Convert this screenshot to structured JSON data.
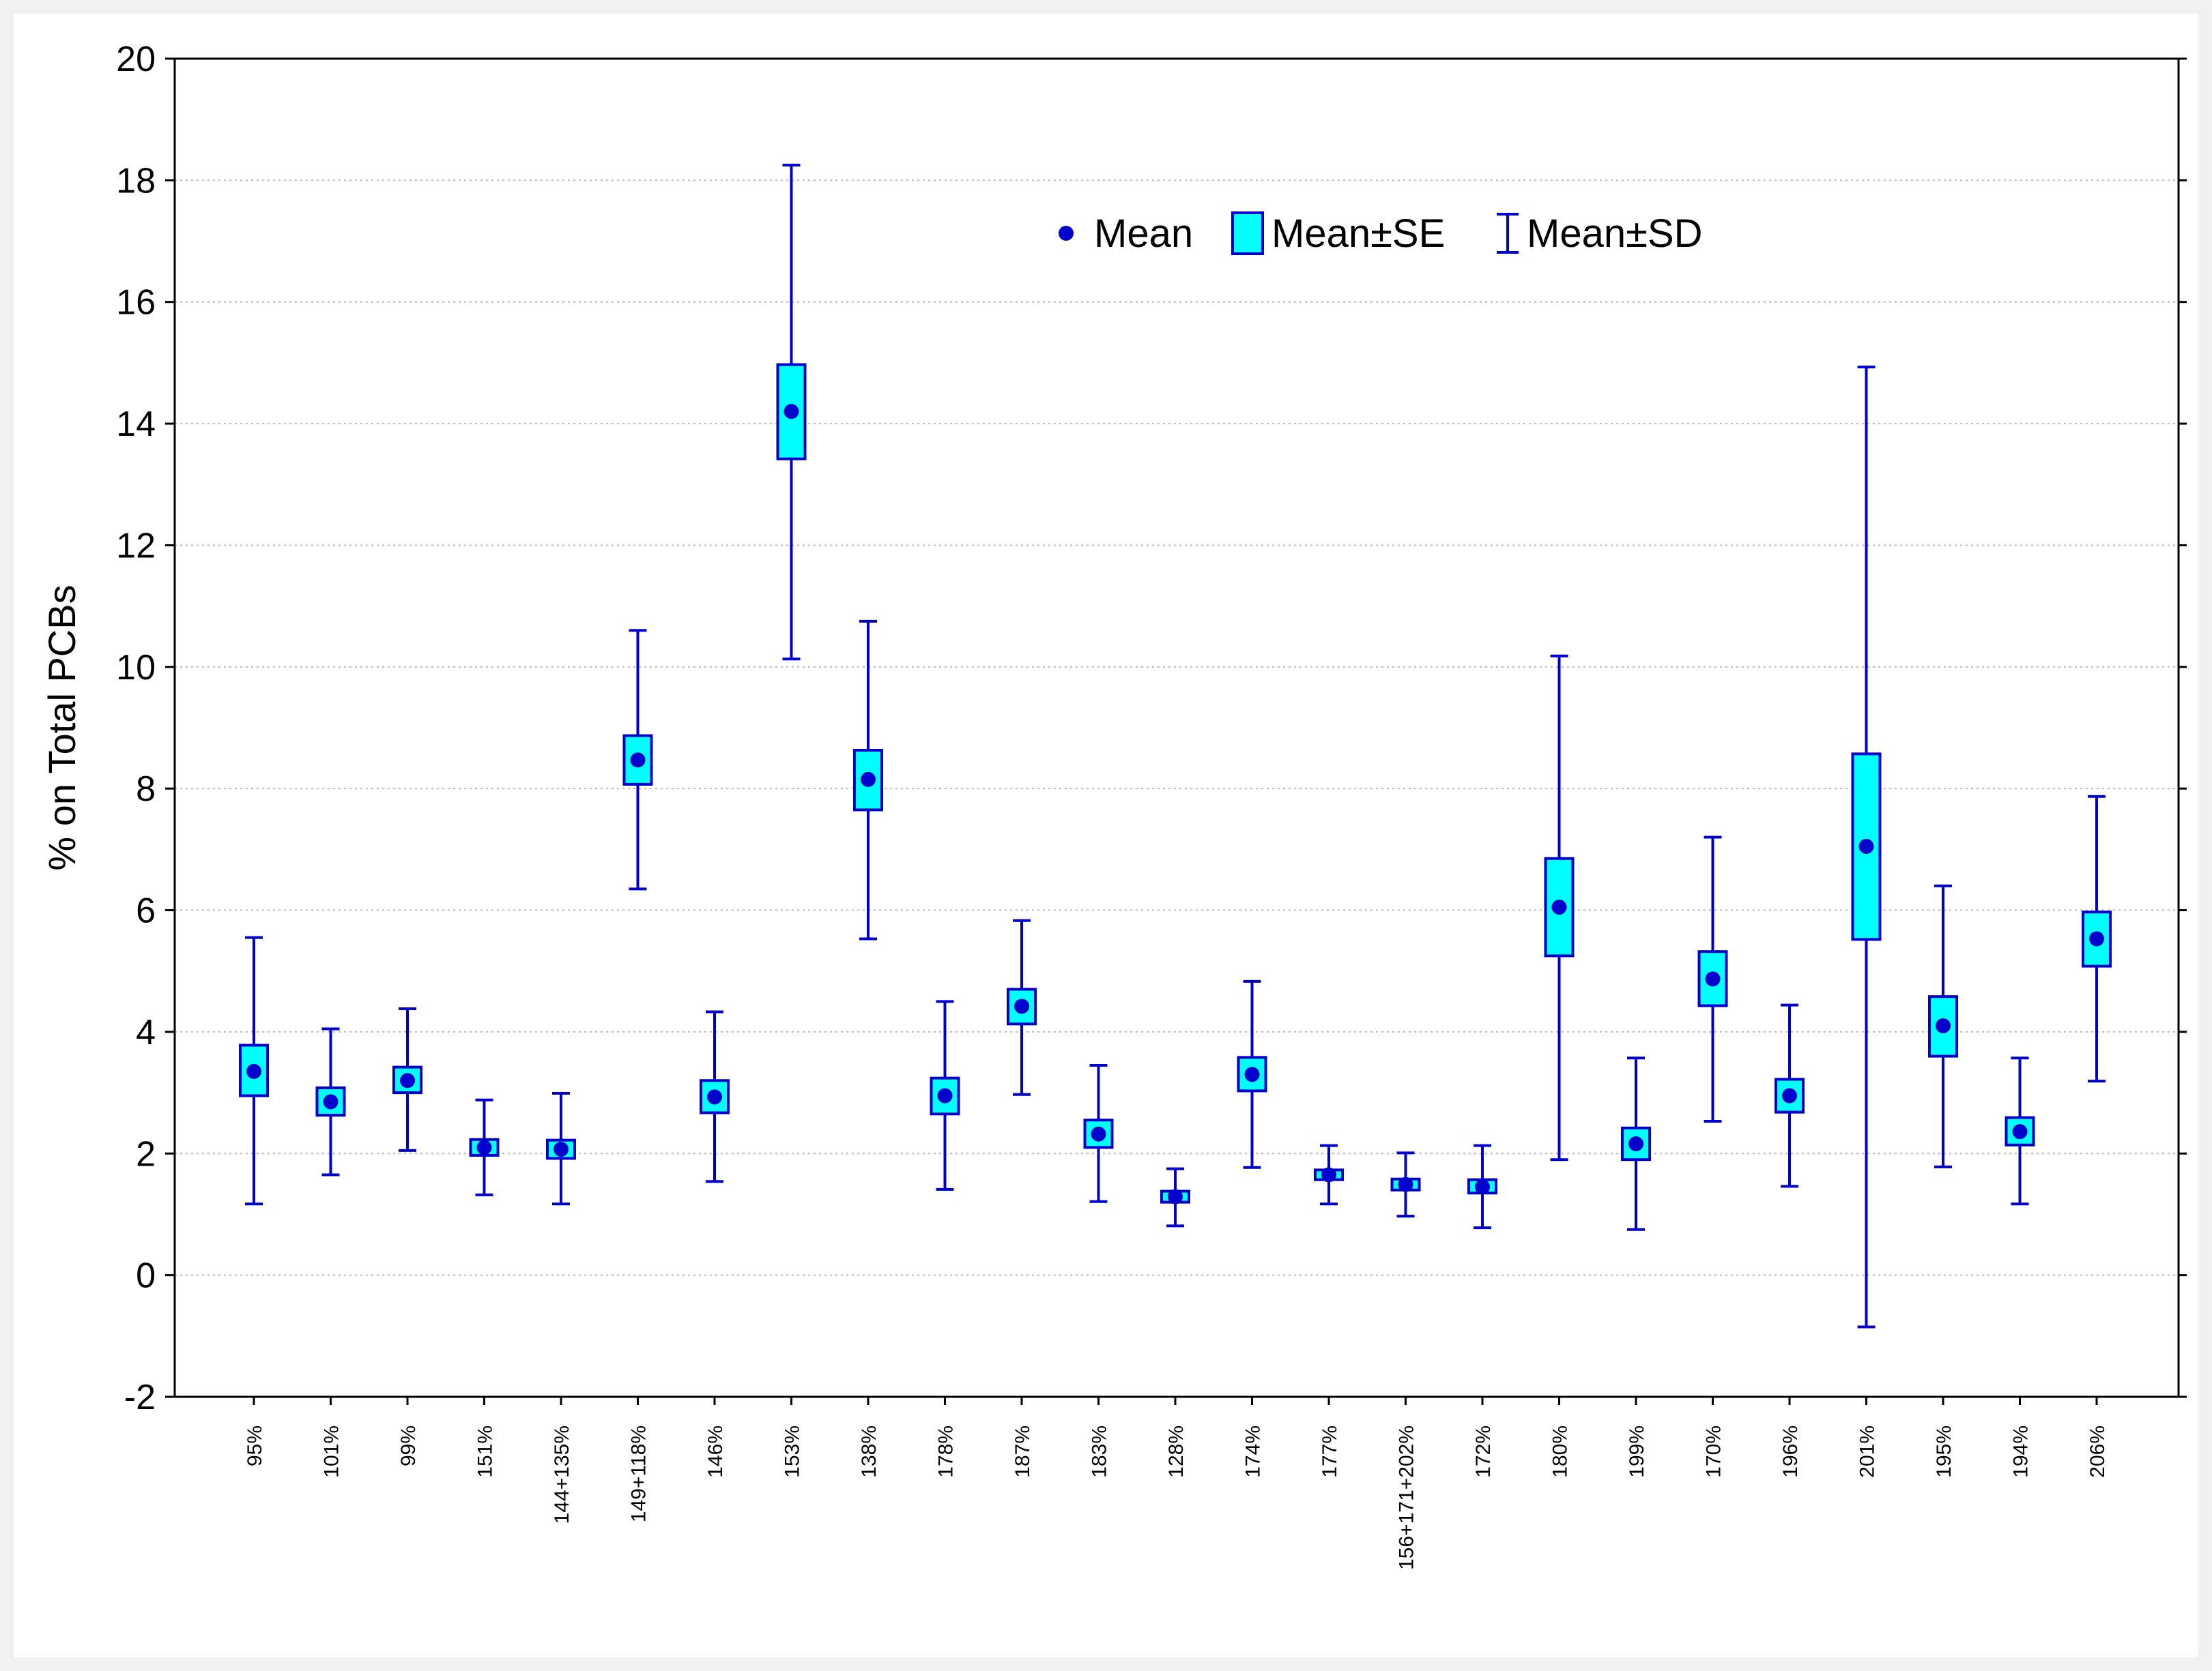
{
  "chart_data": {
    "type": "box",
    "title": "",
    "xlabel": "",
    "ylabel": "% on Total PCBs",
    "ylim": [
      -2,
      20
    ],
    "yticks": [
      "20",
      "18",
      "16",
      "14",
      "12",
      "10",
      "8",
      "6",
      "4",
      "2",
      "0",
      "-2"
    ],
    "grid": "horizontal dotted",
    "legend_position": "top-right",
    "legend": {
      "mean": "Mean",
      "se": "Mean±SE",
      "sd": "Mean±SD"
    },
    "colors": {
      "mark": "#0000cc",
      "box_fill": "#00ffff"
    },
    "categories": [
      "95%",
      "101%",
      "99%",
      "151%",
      "144+135%",
      "149+118%",
      "146%",
      "153%",
      "138%",
      "178%",
      "187%",
      "183%",
      "128%",
      "174%",
      "177%",
      "156+171+202%",
      "172%",
      "180%",
      "199%",
      "170%",
      "196%",
      "201%",
      "195%",
      "194%",
      "206%"
    ],
    "mean": [
      3.35,
      2.85,
      3.2,
      2.1,
      2.07,
      8.47,
      2.93,
      14.2,
      8.15,
      2.95,
      4.42,
      2.32,
      1.29,
      3.3,
      1.65,
      1.49,
      1.45,
      6.05,
      2.16,
      4.87,
      2.95,
      7.05,
      4.1,
      2.36,
      5.53
    ],
    "se_low": [
      2.95,
      2.63,
      3.0,
      1.97,
      1.92,
      8.07,
      2.67,
      13.42,
      7.65,
      2.65,
      4.13,
      2.1,
      1.2,
      3.03,
      1.57,
      1.4,
      1.35,
      5.25,
      1.9,
      4.43,
      2.68,
      5.52,
      3.6,
      2.14,
      5.08
    ],
    "se_high": [
      3.78,
      3.08,
      3.42,
      2.23,
      2.22,
      8.87,
      3.2,
      14.97,
      8.63,
      3.24,
      4.7,
      2.55,
      1.38,
      3.58,
      1.73,
      1.58,
      1.57,
      6.85,
      2.42,
      5.32,
      3.22,
      8.57,
      4.58,
      2.59,
      5.97
    ],
    "sd_low": [
      1.17,
      1.65,
      2.05,
      1.32,
      1.17,
      6.35,
      1.54,
      10.13,
      5.53,
      1.41,
      2.97,
      1.21,
      0.81,
      1.77,
      1.17,
      0.97,
      0.78,
      1.9,
      0.75,
      2.53,
      1.46,
      -0.85,
      1.78,
      1.17,
      3.19
    ],
    "sd_high": [
      5.55,
      4.05,
      4.38,
      2.88,
      2.99,
      10.6,
      4.33,
      18.25,
      10.75,
      4.5,
      5.83,
      3.45,
      1.75,
      4.83,
      2.13,
      2.01,
      2.13,
      10.18,
      3.57,
      7.2,
      4.44,
      14.93,
      6.4,
      3.57,
      7.87
    ]
  }
}
